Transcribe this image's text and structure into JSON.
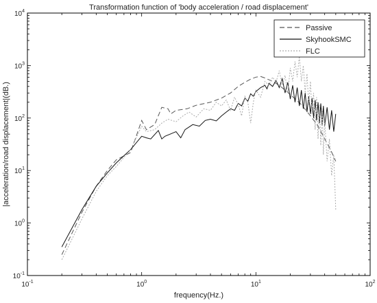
{
  "chart_data": {
    "type": "line",
    "title": "Transformation function of  'body acceleration / road displacement'",
    "xlabel": "frequency(Hz.)",
    "ylabel": "|acceleration/road displacement|(dB.)",
    "xscale": "log",
    "yscale": "log",
    "xlim": [
      0.1,
      100
    ],
    "ylim": [
      0.1,
      10000
    ],
    "grid": false,
    "legend_position": "top-right",
    "xticks": [
      {
        "value": 0.1,
        "base": "10",
        "exp": "-1"
      },
      {
        "value": 1,
        "base": "10",
        "exp": "0"
      },
      {
        "value": 10,
        "base": "10",
        "exp": "1"
      },
      {
        "value": 100,
        "base": "10",
        "exp": "2"
      }
    ],
    "yticks": [
      {
        "value": 0.1,
        "base": "10",
        "exp": "-1"
      },
      {
        "value": 1,
        "base": "10",
        "exp": "0"
      },
      {
        "value": 10,
        "base": "10",
        "exp": "1"
      },
      {
        "value": 100,
        "base": "10",
        "exp": "2"
      },
      {
        "value": 1000,
        "base": "10",
        "exp": "3"
      },
      {
        "value": 10000,
        "base": "10",
        "exp": "4"
      }
    ],
    "series": [
      {
        "name": "Passive",
        "color": "#555555",
        "style": "dashed",
        "points": [
          [
            0.2,
            0.25
          ],
          [
            0.3,
            1.6
          ],
          [
            0.4,
            5
          ],
          [
            0.5,
            10
          ],
          [
            0.6,
            16
          ],
          [
            0.8,
            22
          ],
          [
            1.0,
            90
          ],
          [
            1.1,
            60
          ],
          [
            1.3,
            75
          ],
          [
            1.5,
            160
          ],
          [
            1.7,
            150
          ],
          [
            1.8,
            120
          ],
          [
            2.0,
            140
          ],
          [
            2.5,
            150
          ],
          [
            3.0,
            175
          ],
          [
            4.0,
            200
          ],
          [
            5.0,
            240
          ],
          [
            6.0,
            300
          ],
          [
            7.0,
            400
          ],
          [
            8.0,
            480
          ],
          [
            9.0,
            550
          ],
          [
            10.0,
            600
          ],
          [
            11.0,
            620
          ],
          [
            12.0,
            580
          ],
          [
            14.0,
            500
          ],
          [
            16.0,
            420
          ],
          [
            18.0,
            340
          ],
          [
            20.0,
            280
          ],
          [
            25.0,
            180
          ],
          [
            30.0,
            110
          ],
          [
            35.0,
            70
          ],
          [
            40.0,
            40
          ],
          [
            45.0,
            25
          ],
          [
            50.0,
            15
          ]
        ]
      },
      {
        "name": "SkyhookSMC",
        "color": "#111111",
        "style": "solid",
        "points": [
          [
            0.2,
            0.35
          ],
          [
            0.3,
            1.8
          ],
          [
            0.4,
            5
          ],
          [
            0.5,
            9
          ],
          [
            0.6,
            14
          ],
          [
            0.8,
            25
          ],
          [
            1.0,
            45
          ],
          [
            1.1,
            42
          ],
          [
            1.2,
            40
          ],
          [
            1.4,
            58
          ],
          [
            1.5,
            40
          ],
          [
            1.6,
            45
          ],
          [
            1.8,
            50
          ],
          [
            2.0,
            55
          ],
          [
            2.2,
            42
          ],
          [
            2.4,
            60
          ],
          [
            2.8,
            75
          ],
          [
            3.2,
            70
          ],
          [
            3.6,
            90
          ],
          [
            4.0,
            95
          ],
          [
            4.5,
            88
          ],
          [
            5.0,
            110
          ],
          [
            5.5,
            130
          ],
          [
            6.0,
            150
          ],
          [
            6.5,
            140
          ],
          [
            7.0,
            190
          ],
          [
            7.5,
            170
          ],
          [
            8.0,
            240
          ],
          [
            8.5,
            210
          ],
          [
            9.0,
            290
          ],
          [
            9.5,
            260
          ],
          [
            10.0,
            320
          ],
          [
            11.0,
            380
          ],
          [
            12.0,
            420
          ],
          [
            12.5,
            360
          ],
          [
            13.0,
            460
          ],
          [
            14.0,
            400
          ],
          [
            15.0,
            520
          ],
          [
            16.0,
            380
          ],
          [
            17.0,
            560
          ],
          [
            18.0,
            300
          ],
          [
            19.0,
            480
          ],
          [
            20.0,
            230
          ],
          [
            21.0,
            420
          ],
          [
            22.0,
            200
          ],
          [
            23.0,
            380
          ],
          [
            24.0,
            170
          ],
          [
            25.0,
            340
          ],
          [
            26.0,
            150
          ],
          [
            27.0,
            300
          ],
          [
            28.0,
            130
          ],
          [
            29.0,
            260
          ],
          [
            30.0,
            120
          ],
          [
            31.0,
            240
          ],
          [
            32.0,
            100
          ],
          [
            33.0,
            220
          ],
          [
            34.0,
            90
          ],
          [
            35.0,
            200
          ],
          [
            36.0,
            80
          ],
          [
            37.0,
            190
          ],
          [
            38.0,
            75
          ],
          [
            39.0,
            170
          ],
          [
            40.0,
            70
          ],
          [
            42.0,
            160
          ],
          [
            44.0,
            60
          ],
          [
            46.0,
            140
          ],
          [
            48.0,
            55
          ],
          [
            50.0,
            120
          ]
        ]
      },
      {
        "name": "FLC",
        "color": "#aaaaaa",
        "style": "dotted",
        "points": [
          [
            0.2,
            0.2
          ],
          [
            0.3,
            1.2
          ],
          [
            0.4,
            4
          ],
          [
            0.5,
            8
          ],
          [
            0.6,
            12
          ],
          [
            0.8,
            25
          ],
          [
            1.0,
            70
          ],
          [
            1.1,
            55
          ],
          [
            1.3,
            60
          ],
          [
            1.5,
            80
          ],
          [
            1.7,
            95
          ],
          [
            2.0,
            85
          ],
          [
            2.3,
            110
          ],
          [
            2.6,
            130
          ],
          [
            3.0,
            105
          ],
          [
            3.5,
            150
          ],
          [
            4.0,
            140
          ],
          [
            4.5,
            200
          ],
          [
            5.0,
            170
          ],
          [
            5.5,
            220
          ],
          [
            6.0,
            140
          ],
          [
            6.5,
            250
          ],
          [
            7.0,
            180
          ],
          [
            7.5,
            110
          ],
          [
            8.0,
            260
          ],
          [
            8.5,
            200
          ],
          [
            9.0,
            80
          ],
          [
            9.5,
            200
          ],
          [
            10.0,
            340
          ],
          [
            11.0,
            250
          ],
          [
            12.0,
            500
          ],
          [
            13.0,
            420
          ],
          [
            14.0,
            600
          ],
          [
            15.0,
            480
          ],
          [
            16.0,
            800
          ],
          [
            17.0,
            420
          ],
          [
            18.0,
            650
          ],
          [
            19.0,
            300
          ],
          [
            20.0,
            900
          ],
          [
            21.0,
            500
          ],
          [
            22.0,
            1200
          ],
          [
            23.0,
            600
          ],
          [
            24.0,
            1500
          ],
          [
            25.0,
            500
          ],
          [
            26.0,
            1000
          ],
          [
            27.0,
            300
          ],
          [
            28.0,
            700
          ],
          [
            29.0,
            180
          ],
          [
            30.0,
            500
          ],
          [
            31.0,
            120
          ],
          [
            32.0,
            300
          ],
          [
            33.0,
            60
          ],
          [
            34.0,
            250
          ],
          [
            35.0,
            40
          ],
          [
            36.0,
            180
          ],
          [
            37.0,
            30
          ],
          [
            38.0,
            150
          ],
          [
            39.0,
            20
          ],
          [
            40.0,
            90
          ],
          [
            42.0,
            15
          ],
          [
            44.0,
            40
          ],
          [
            46.0,
            8
          ],
          [
            48.0,
            20
          ],
          [
            50.0,
            1.8
          ]
        ]
      }
    ]
  }
}
